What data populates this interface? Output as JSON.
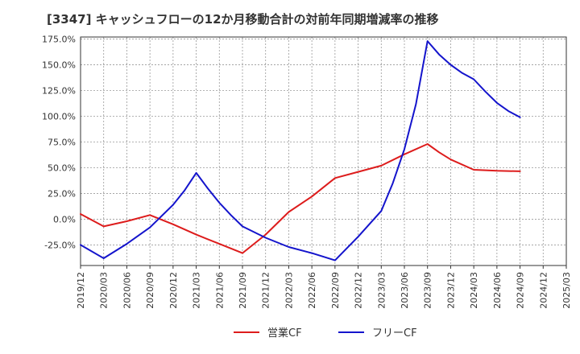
{
  "chart_data": {
    "type": "line",
    "title": "[3347]  キャッシュフローの12か月移動合計の対前年同期増減率の推移",
    "xlabel": "",
    "ylabel": "",
    "ylim": [
      -45,
      177
    ],
    "y_ticks": [
      -25,
      0,
      25,
      50,
      75,
      100,
      125,
      150,
      175
    ],
    "y_tick_labels": [
      "-25.0%",
      "0.0%",
      "25.0%",
      "50.0%",
      "75.0%",
      "100.0%",
      "125.0%",
      "150.0%",
      "175.0%"
    ],
    "x_tick_labels": [
      "2019/12",
      "2020/03",
      "2020/06",
      "2020/09",
      "2020/12",
      "2021/03",
      "2021/06",
      "2021/09",
      "2021/12",
      "2022/03",
      "2022/06",
      "2022/09",
      "2022/12",
      "2023/03",
      "2023/06",
      "2023/09",
      "2023/12",
      "2024/03",
      "2024/06",
      "2024/09",
      "2024/12",
      "2025/03"
    ],
    "grid": true,
    "legend_position": "bottom-center",
    "series": [
      {
        "name": "営業CF",
        "color": "#dd1c1c",
        "points": [
          [
            0,
            5
          ],
          [
            1,
            -7
          ],
          [
            2,
            -2
          ],
          [
            3,
            4
          ],
          [
            4,
            -5
          ],
          [
            5,
            -15
          ],
          [
            6,
            -24
          ],
          [
            7,
            -33
          ],
          [
            8,
            -15
          ],
          [
            9,
            7
          ],
          [
            10,
            22
          ],
          [
            11,
            40
          ],
          [
            12,
            46
          ],
          [
            13,
            52
          ],
          [
            14,
            63
          ],
          [
            15,
            73
          ],
          [
            15.5,
            65
          ],
          [
            16,
            58
          ],
          [
            17,
            48
          ],
          [
            18,
            47
          ],
          [
            19,
            46.5
          ]
        ]
      },
      {
        "name": "フリーCF",
        "color": "#1414cc",
        "points": [
          [
            0,
            -25
          ],
          [
            1,
            -38
          ],
          [
            2,
            -24
          ],
          [
            3,
            -8
          ],
          [
            4,
            14
          ],
          [
            4.5,
            28
          ],
          [
            5,
            45
          ],
          [
            5.5,
            30
          ],
          [
            6,
            16
          ],
          [
            6.5,
            4
          ],
          [
            7,
            -7
          ],
          [
            8,
            -18
          ],
          [
            9,
            -27
          ],
          [
            10,
            -33
          ],
          [
            11,
            -40
          ],
          [
            12,
            -17
          ],
          [
            13,
            8
          ],
          [
            13.5,
            35
          ],
          [
            14,
            68
          ],
          [
            14.5,
            112
          ],
          [
            15,
            173
          ],
          [
            15.5,
            160
          ],
          [
            16,
            150
          ],
          [
            16.5,
            142
          ],
          [
            17,
            136
          ],
          [
            17.5,
            124
          ],
          [
            18,
            113
          ],
          [
            18.5,
            105
          ],
          [
            19,
            99
          ]
        ]
      }
    ]
  }
}
